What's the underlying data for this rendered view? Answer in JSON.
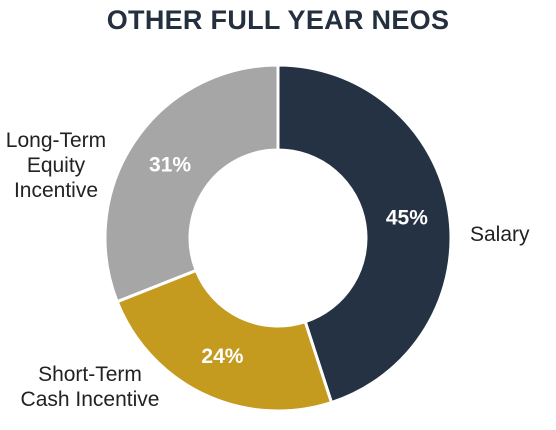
{
  "chart_data": {
    "type": "pie",
    "title": "OTHER FULL YEAR NEOS",
    "slices": [
      {
        "label": "Salary",
        "value": 45,
        "display": "45%",
        "color": "#243243"
      },
      {
        "label": "Short-Term Cash Incentive",
        "value": 24,
        "display": "24%",
        "color": "#C49A1F"
      },
      {
        "label": "Long-Term Equity Incentive",
        "value": 31,
        "display": "31%",
        "color": "#A6A6A6"
      }
    ],
    "donut": true,
    "start_angle_deg": 0,
    "direction": "clockwise"
  },
  "labels": {
    "salary": "Salary",
    "short_term_line1": "Short-Term",
    "short_term_line2": "Cash Incentive",
    "long_term_line1": "Long-Term",
    "long_term_line2": "Equity",
    "long_term_line3": "Incentive"
  }
}
